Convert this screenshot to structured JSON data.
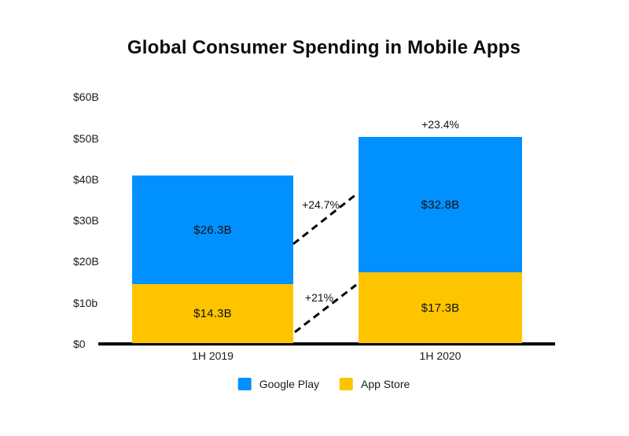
{
  "chart_data": {
    "type": "bar",
    "stacked": true,
    "title": "Global Consumer Spending in Mobile Apps",
    "categories": [
      "1H 2019",
      "1H 2020"
    ],
    "series": [
      {
        "name": "Google Play",
        "color": "#0090FF",
        "values": [
          26.3,
          32.8
        ],
        "labels": [
          "$26.3B",
          "$32.8B"
        ]
      },
      {
        "name": "App Store",
        "color": "#FFC400",
        "values": [
          14.3,
          17.3
        ],
        "labels": [
          "$14.3B",
          "$17.3B"
        ]
      }
    ],
    "y_axis": {
      "ticks": [
        "$60B",
        "$50B",
        "$40B",
        "$30B",
        "$20B",
        "$10b",
        "$0"
      ],
      "tick_values": [
        60,
        50,
        40,
        30,
        20,
        10,
        0
      ],
      "min": 0,
      "max": 60,
      "grid": false
    },
    "annotations": {
      "total_growth": "+23.4%",
      "google_play_growth": "+24.7%",
      "app_store_growth": "+21%"
    },
    "legend": [
      {
        "label": "Google Play",
        "color": "#0090FF"
      },
      {
        "label": "App Store",
        "color": "#FFC400"
      }
    ],
    "legend_position": "bottom",
    "colors": {
      "google_play": "#0090FF",
      "app_store": "#FFC400",
      "axis": "#000000",
      "text": "#1a1a1a",
      "background": "#FFFFFF"
    }
  }
}
